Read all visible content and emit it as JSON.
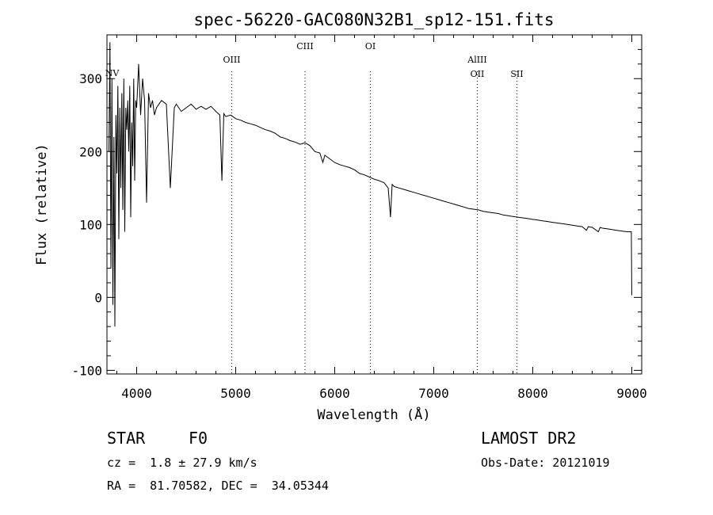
{
  "chart_data": {
    "type": "line",
    "title": "spec-56220-GAC080N32B1_sp12-151.fits",
    "xlabel": "Wavelength (Å)",
    "ylabel": "Flux (relative)",
    "xlim": [
      3700,
      9100
    ],
    "ylim": [
      -105,
      360
    ],
    "xticks": [
      4000,
      5000,
      6000,
      7000,
      8000,
      9000
    ],
    "yticks": [
      -100,
      0,
      100,
      200,
      300
    ],
    "xtick_labels": [
      "4000",
      "5000",
      "6000",
      "7000",
      "8000",
      "9000"
    ],
    "ytick_labels": [
      "-100",
      "0",
      "100",
      "200",
      "300"
    ],
    "series": [
      {
        "name": "flux",
        "x": [
          3720,
          3730,
          3740,
          3750,
          3760,
          3770,
          3780,
          3790,
          3800,
          3810,
          3820,
          3830,
          3840,
          3850,
          3860,
          3870,
          3880,
          3890,
          3900,
          3910,
          3920,
          3930,
          3940,
          3950,
          3960,
          3970,
          3980,
          3990,
          4000,
          4020,
          4040,
          4060,
          4080,
          4100,
          4120,
          4140,
          4160,
          4180,
          4200,
          4250,
          4300,
          4340,
          4380,
          4400,
          4450,
          4500,
          4550,
          4600,
          4650,
          4700,
          4750,
          4800,
          4840,
          4861,
          4880,
          4900,
          4950,
          5000,
          5050,
          5100,
          5150,
          5200,
          5250,
          5300,
          5350,
          5400,
          5450,
          5500,
          5550,
          5600,
          5650,
          5700,
          5750,
          5800,
          5850,
          5880,
          5900,
          5950,
          6000,
          6050,
          6100,
          6150,
          6200,
          6250,
          6300,
          6350,
          6400,
          6450,
          6500,
          6540,
          6563,
          6580,
          6600,
          6650,
          6700,
          6750,
          6800,
          6850,
          6900,
          6950,
          7000,
          7050,
          7100,
          7150,
          7200,
          7250,
          7300,
          7350,
          7400,
          7450,
          7500,
          7550,
          7600,
          7650,
          7700,
          7750,
          7800,
          7850,
          7900,
          7950,
          8000,
          8050,
          8100,
          8150,
          8200,
          8250,
          8300,
          8350,
          8400,
          8450,
          8500,
          8542,
          8560,
          8600,
          8662,
          8680,
          8700,
          8750,
          8800,
          8850,
          8900,
          8950,
          8980,
          8995,
          9000
        ],
        "values": [
          200,
          350,
          40,
          300,
          -10,
          220,
          -40,
          250,
          170,
          290,
          80,
          260,
          150,
          280,
          120,
          300,
          90,
          260,
          230,
          270,
          200,
          290,
          110,
          240,
          180,
          300,
          160,
          270,
          260,
          320,
          250,
          300,
          270,
          130,
          280,
          260,
          270,
          250,
          260,
          270,
          265,
          150,
          260,
          265,
          255,
          260,
          265,
          258,
          262,
          258,
          262,
          255,
          250,
          160,
          252,
          248,
          250,
          245,
          243,
          240,
          238,
          236,
          233,
          230,
          228,
          225,
          220,
          218,
          215,
          213,
          210,
          212,
          208,
          200,
          198,
          185,
          195,
          190,
          185,
          182,
          180,
          178,
          175,
          170,
          168,
          165,
          162,
          160,
          157,
          150,
          110,
          155,
          152,
          150,
          148,
          146,
          144,
          142,
          140,
          138,
          136,
          134,
          132,
          130,
          128,
          126,
          124,
          122,
          121,
          120,
          118,
          117,
          116,
          115,
          113,
          112,
          111,
          110,
          109,
          108,
          107,
          106,
          105,
          104,
          103,
          102,
          101,
          100,
          99,
          98,
          97,
          92,
          97,
          96,
          90,
          96,
          95,
          94,
          93,
          92,
          91,
          90,
          90,
          90,
          3
        ]
      }
    ],
    "lines": [
      {
        "label": "NV",
        "x": 3720
      },
      {
        "label": "OIII",
        "x": 4960
      },
      {
        "label": "CIII",
        "x": 5700
      },
      {
        "label": "OI",
        "x": 6360
      },
      {
        "label": "AlIII",
        "x": 7440
      },
      {
        "label": "OII",
        "x": 7440
      },
      {
        "label": "SII",
        "x": 7840
      }
    ]
  },
  "info": {
    "object_class": "STAR",
    "subclass": "F0",
    "survey": "LAMOST DR2",
    "redshift": "cz =  1.8 ± 27.9 km/s",
    "obs_date": "Obs-Date: 20121019",
    "coords": "RA =  81.70582, DEC =  34.05344"
  }
}
